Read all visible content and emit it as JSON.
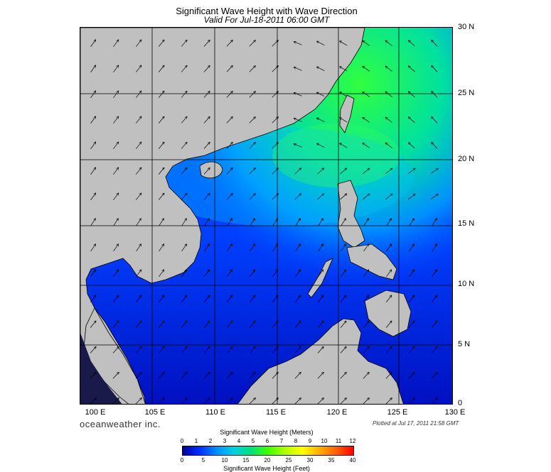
{
  "title": "Significant Wave Height with Wave Direction",
  "subtitle": "Valid For Jul-18-2011 06:00 GMT",
  "brand": "oceanweather inc.",
  "plotted": "Plotted at Jul 17, 2011 21:58 GMT",
  "latitude_labels": [
    "30 N",
    "25 N",
    "20 N",
    "15 N",
    "10 N",
    "5 N",
    "0"
  ],
  "longitude_labels": [
    "100 E",
    "105 E",
    "110 E",
    "115 E",
    "120 E",
    "125 E",
    "130 E"
  ],
  "legend": {
    "title_meters": "Significant Wave Height (Meters)",
    "title_feet": "Significant Wave Height (Feet)",
    "meters_ticks": [
      "0",
      "1",
      "2",
      "3",
      "4",
      "5",
      "6",
      "7",
      "8",
      "9",
      "10",
      "11",
      "12"
    ],
    "feet_ticks": [
      "0",
      "5",
      "10",
      "15",
      "20",
      "25",
      "30",
      "35",
      "40"
    ],
    "colors": [
      "#0000a0",
      "#0030ff",
      "#0090ff",
      "#00d0e0",
      "#00e080",
      "#40ff00",
      "#b0ff00",
      "#ffff00",
      "#ffb000",
      "#ff6000",
      "#ff0000"
    ]
  },
  "colors": {
    "land": "#c0c0c0",
    "ocean_deep": "#0000c8",
    "ocean_mid": "#0050ff",
    "ocean_high": "#00e0a0",
    "ocean_peak": "#30ff40",
    "coast": "#000000"
  }
}
